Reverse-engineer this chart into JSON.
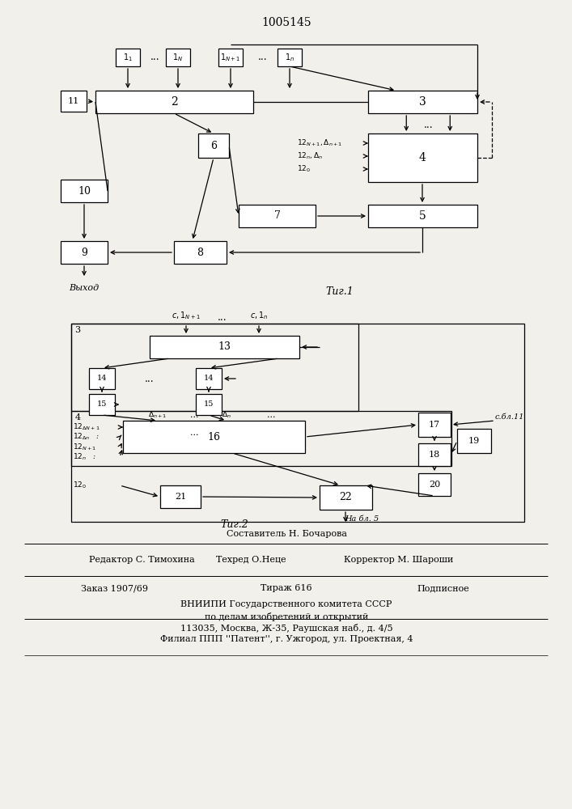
{
  "title": "1005145",
  "bg_color": "#f2f0eb",
  "fig1_caption": "Τиг.1",
  "fig2_caption": "Τиг.2",
  "vykhod": "Выход",
  "na_bl5": "На бл. 5",
  "s_bl11": "с.бл.11",
  "sostavitel": "Составитель Н. Бочарова",
  "redaktor": "Редактор С. Тимохина",
  "tekhred": "Техред О.Неце",
  "korrektor": "Корректор М. Шароши",
  "zakaz": "Заказ 1907/69",
  "tirazh": "Тираж 616",
  "podpisnoe": "Подписное",
  "vniipii1": "ВНИИПИ Государственного комитета СССР",
  "vniipii2": "по делам изобретений и открытий",
  "vniipii3": "113035, Москва, Ж-35, Раушская наб., д. 4/5",
  "filial": "Филиал ППП ''Патент'', г. Ужгород, ул. Проектная, 4"
}
